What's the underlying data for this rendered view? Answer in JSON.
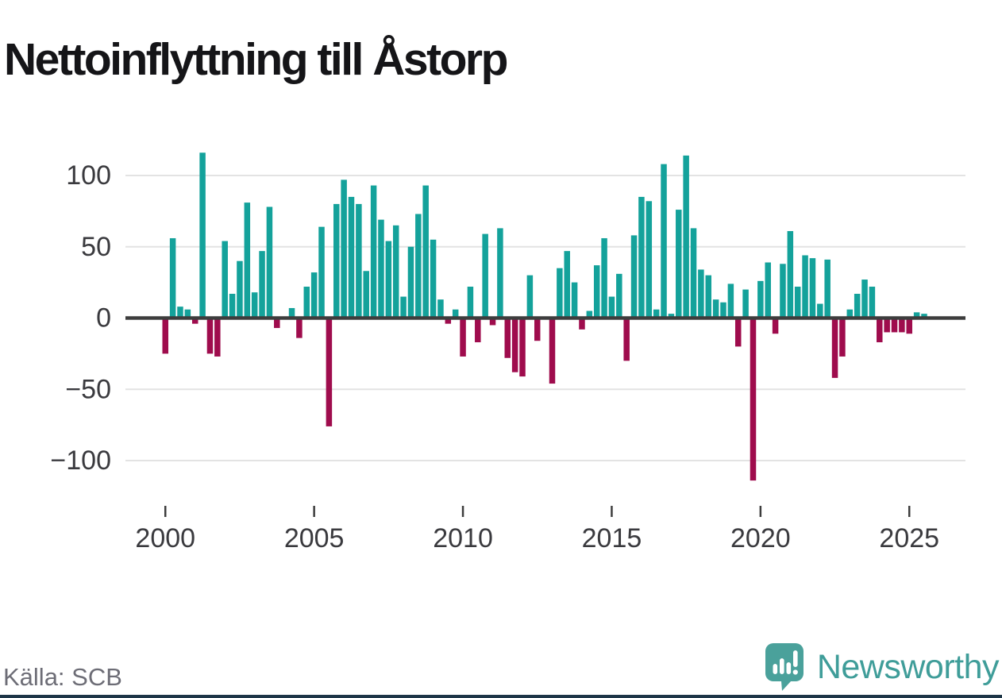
{
  "header": {
    "title": "Nettoinflyttning till Åstorp"
  },
  "footer": {
    "source": "Källa: SCB",
    "brand": "Newsworthy"
  },
  "style": {
    "background": "#ffffff",
    "title_color": "#151518",
    "grid_color": "#e3e3e3",
    "zero_line_color": "#3d3d3d",
    "tick_label_color": "#3a3a3e",
    "source_color": "#6d6d76",
    "brand_color": "#3f9d99",
    "logo_color": "#4aa19b",
    "bottom_strip_color": "#1d3647"
  },
  "chart_data": {
    "type": "bar",
    "title": "Nettoinflyttning till Åstorp",
    "frequency": "quarterly",
    "start": {
      "year": 2000,
      "quarter": 1
    },
    "values": [
      -25,
      56,
      8,
      6,
      -4,
      116,
      -25,
      -27,
      54,
      17,
      40,
      81,
      18,
      47,
      78,
      -7,
      0,
      7,
      -14,
      22,
      32,
      64,
      -76,
      80,
      97,
      85,
      80,
      33,
      93,
      69,
      54,
      65,
      15,
      50,
      73,
      93,
      55,
      13,
      -4,
      6,
      -27,
      22,
      -17,
      59,
      -5,
      63,
      -28,
      -38,
      -41,
      30,
      -16,
      1,
      -46,
      35,
      47,
      25,
      -8,
      5,
      37,
      56,
      15,
      31,
      -30,
      58,
      85,
      82,
      6,
      108,
      3,
      76,
      114,
      63,
      34,
      30,
      13,
      11,
      24,
      -20,
      20,
      -114,
      26,
      39,
      -11,
      38,
      61,
      22,
      44,
      42,
      10,
      41,
      -42,
      -27,
      6,
      17,
      27,
      22,
      -17,
      -10,
      -10,
      -10,
      -11,
      4,
      3
    ],
    "y_ticks": [
      {
        "label": "100",
        "value": 100
      },
      {
        "label": "50",
        "value": 50
      },
      {
        "label": "0",
        "value": 0
      },
      {
        "label": "−50",
        "value": -50
      },
      {
        "label": "−100",
        "value": -100
      }
    ],
    "x_ticks": [
      {
        "label": "2000",
        "year": 2000
      },
      {
        "label": "2005",
        "year": 2005
      },
      {
        "label": "2010",
        "year": 2010
      },
      {
        "label": "2015",
        "year": 2015
      },
      {
        "label": "2020",
        "year": 2020
      },
      {
        "label": "2025",
        "year": 2025
      }
    ],
    "ylim": [
      -120,
      125
    ],
    "grid": true,
    "legend": "none",
    "colors": {
      "positive": "#14a29b",
      "negative": "#9f0c4d"
    }
  }
}
